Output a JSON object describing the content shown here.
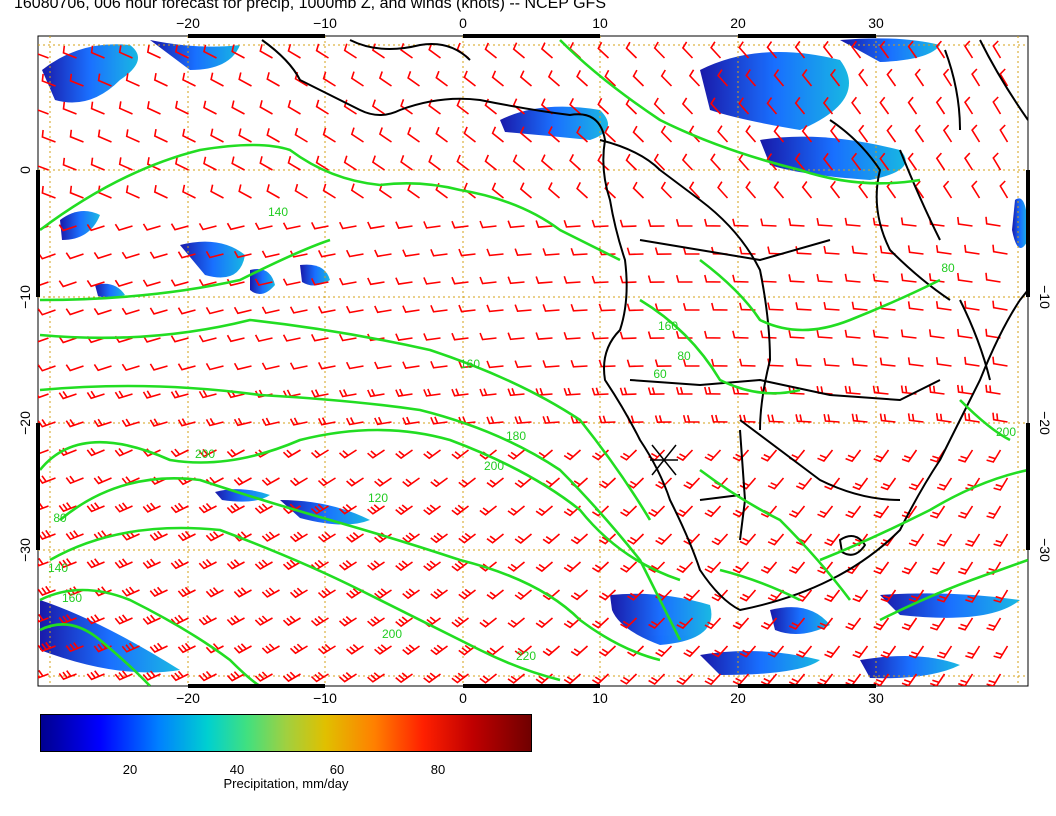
{
  "title": "16080706, 006 hour forecast for precip, 1000mb Z, and winds (knots) -- NCEP GFS",
  "map": {
    "lon_ticks_bottom": [
      "−20",
      "−10",
      "0",
      "10",
      "20",
      "30"
    ],
    "lon_ticks_top": [
      "−20",
      "−10",
      "0",
      "10",
      "20",
      "30"
    ],
    "lat_ticks": [
      "0",
      "−10",
      "−20",
      "−30"
    ],
    "contour_labels": [
      "140",
      "160",
      "200",
      "180",
      "200",
      "160",
      "80",
      "60",
      "200",
      "120",
      "140",
      "160",
      "200",
      "220",
      "80",
      "80"
    ],
    "colors": {
      "contour": "#22dd22",
      "barb": "#ff0000",
      "coast": "#000000",
      "grid": "#d4a017"
    }
  },
  "colorbar": {
    "ticks": [
      "20",
      "40",
      "60",
      "80"
    ],
    "label": "Precipitation, mm/day"
  }
}
